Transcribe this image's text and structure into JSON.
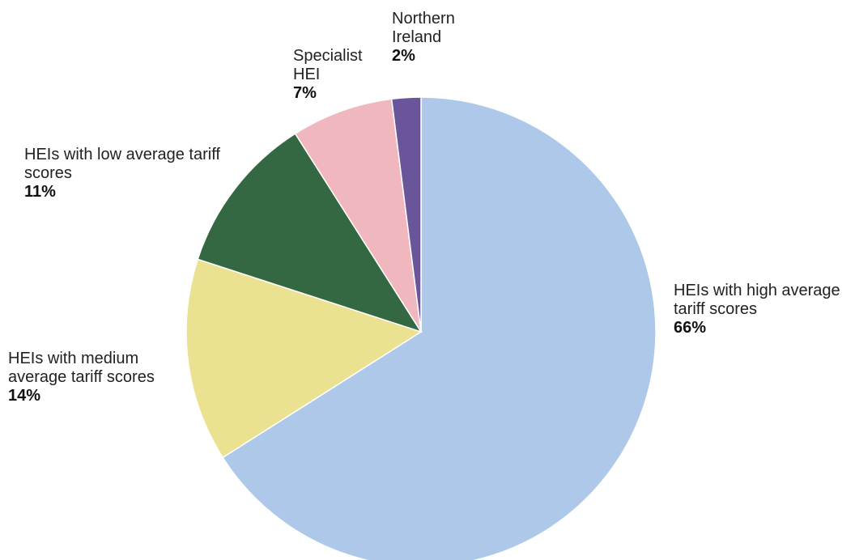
{
  "chart_data": {
    "type": "pie",
    "categories": [
      "HEIs with high average tariff scores",
      "HEIs with medium average tariff scores",
      "HEIs with low average tariff scores",
      "Specialist HEI",
      "Northern Ireland"
    ],
    "values": [
      66,
      14,
      11,
      7,
      2
    ],
    "value_labels": [
      "66%",
      "14%",
      "11%",
      "7%",
      "2%"
    ],
    "colors": [
      "#adc8e8",
      "#ebe291",
      "#336842",
      "#f0b8be",
      "#6a559b"
    ]
  }
}
